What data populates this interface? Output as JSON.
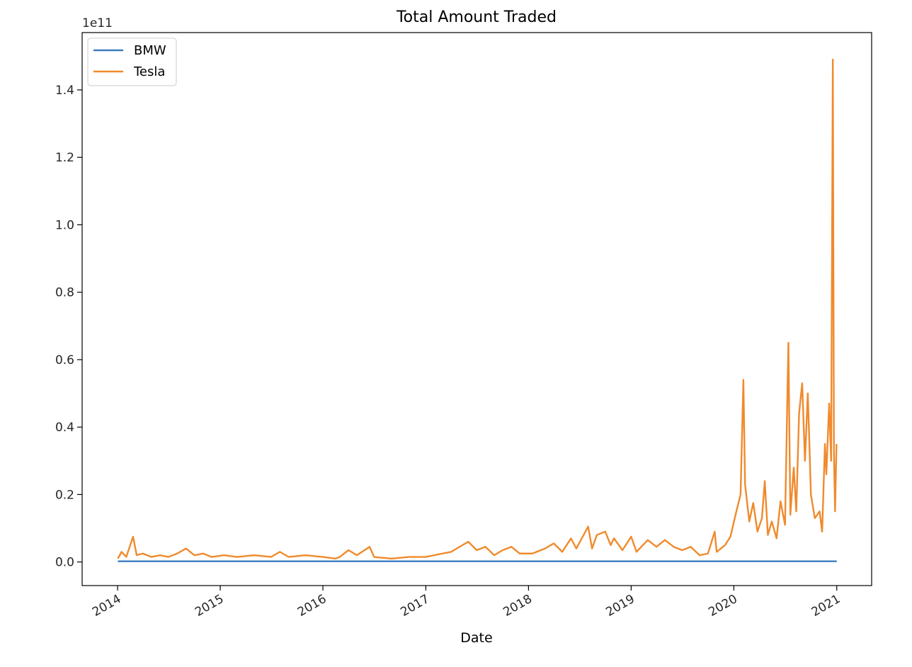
{
  "chart_data": {
    "type": "line",
    "title": "Total Amount Traded",
    "xlabel": "Date",
    "ylabel": "",
    "y_offset_label": "1e11",
    "y_scale_factor": 100000000000,
    "xlim": [
      "2013-08-28",
      "2021-05-05"
    ],
    "ylim": [
      -0.07,
      1.57
    ],
    "x_ticks": [
      "2014",
      "2015",
      "2016",
      "2017",
      "2018",
      "2019",
      "2020",
      "2021"
    ],
    "y_ticks": [
      "0.0",
      "0.2",
      "0.4",
      "0.6",
      "0.8",
      "1.0",
      "1.2",
      "1.4"
    ],
    "grid": false,
    "legend_position": "top-left",
    "series": [
      {
        "name": "BMW",
        "color": "#3b7bbf",
        "points": [
          [
            "2014-01-02",
            0.002
          ],
          [
            "2021-01-01",
            0.002
          ]
        ]
      },
      {
        "name": "Tesla",
        "color": "#f08a2c",
        "points": [
          [
            "2014-01-02",
            0.01
          ],
          [
            "2014-01-15",
            0.03
          ],
          [
            "2014-02-01",
            0.015
          ],
          [
            "2014-02-25",
            0.075
          ],
          [
            "2014-03-10",
            0.02
          ],
          [
            "2014-04-01",
            0.025
          ],
          [
            "2014-05-01",
            0.015
          ],
          [
            "2014-06-01",
            0.02
          ],
          [
            "2014-07-01",
            0.015
          ],
          [
            "2014-08-01",
            0.025
          ],
          [
            "2014-09-01",
            0.04
          ],
          [
            "2014-10-01",
            0.02
          ],
          [
            "2014-11-01",
            0.025
          ],
          [
            "2014-12-01",
            0.015
          ],
          [
            "2015-01-15",
            0.02
          ],
          [
            "2015-03-01",
            0.015
          ],
          [
            "2015-05-01",
            0.02
          ],
          [
            "2015-07-01",
            0.015
          ],
          [
            "2015-08-01",
            0.03
          ],
          [
            "2015-09-01",
            0.015
          ],
          [
            "2015-11-01",
            0.02
          ],
          [
            "2016-01-01",
            0.015
          ],
          [
            "2016-02-15",
            0.01
          ],
          [
            "2016-03-01",
            0.015
          ],
          [
            "2016-04-01",
            0.035
          ],
          [
            "2016-05-01",
            0.02
          ],
          [
            "2016-06-15",
            0.045
          ],
          [
            "2016-07-01",
            0.015
          ],
          [
            "2016-09-01",
            0.01
          ],
          [
            "2016-11-01",
            0.015
          ],
          [
            "2017-01-01",
            0.015
          ],
          [
            "2017-03-01",
            0.025
          ],
          [
            "2017-04-01",
            0.03
          ],
          [
            "2017-05-01",
            0.045
          ],
          [
            "2017-06-01",
            0.06
          ],
          [
            "2017-07-01",
            0.035
          ],
          [
            "2017-08-01",
            0.045
          ],
          [
            "2017-09-01",
            0.02
          ],
          [
            "2017-10-01",
            0.035
          ],
          [
            "2017-11-01",
            0.045
          ],
          [
            "2017-12-01",
            0.025
          ],
          [
            "2018-01-15",
            0.025
          ],
          [
            "2018-03-01",
            0.04
          ],
          [
            "2018-04-01",
            0.055
          ],
          [
            "2018-05-01",
            0.03
          ],
          [
            "2018-06-01",
            0.07
          ],
          [
            "2018-06-20",
            0.04
          ],
          [
            "2018-08-01",
            0.105
          ],
          [
            "2018-08-15",
            0.04
          ],
          [
            "2018-09-01",
            0.08
          ],
          [
            "2018-10-01",
            0.09
          ],
          [
            "2018-10-20",
            0.05
          ],
          [
            "2018-11-01",
            0.07
          ],
          [
            "2018-12-01",
            0.035
          ],
          [
            "2019-01-01",
            0.075
          ],
          [
            "2019-01-20",
            0.03
          ],
          [
            "2019-03-01",
            0.065
          ],
          [
            "2019-04-01",
            0.045
          ],
          [
            "2019-05-01",
            0.065
          ],
          [
            "2019-06-01",
            0.045
          ],
          [
            "2019-07-01",
            0.035
          ],
          [
            "2019-08-01",
            0.045
          ],
          [
            "2019-09-01",
            0.02
          ],
          [
            "2019-10-01",
            0.025
          ],
          [
            "2019-10-25",
            0.09
          ],
          [
            "2019-11-01",
            0.03
          ],
          [
            "2019-12-01",
            0.05
          ],
          [
            "2019-12-20",
            0.075
          ],
          [
            "2020-01-10",
            0.15
          ],
          [
            "2020-01-25",
            0.2
          ],
          [
            "2020-02-04",
            0.54
          ],
          [
            "2020-02-10",
            0.23
          ],
          [
            "2020-02-25",
            0.12
          ],
          [
            "2020-03-10",
            0.175
          ],
          [
            "2020-03-25",
            0.09
          ],
          [
            "2020-04-10",
            0.13
          ],
          [
            "2020-04-20",
            0.24
          ],
          [
            "2020-05-01",
            0.08
          ],
          [
            "2020-05-15",
            0.12
          ],
          [
            "2020-06-01",
            0.07
          ],
          [
            "2020-06-15",
            0.18
          ],
          [
            "2020-07-01",
            0.11
          ],
          [
            "2020-07-13",
            0.65
          ],
          [
            "2020-07-20",
            0.14
          ],
          [
            "2020-08-01",
            0.28
          ],
          [
            "2020-08-10",
            0.15
          ],
          [
            "2020-08-20",
            0.44
          ],
          [
            "2020-08-31",
            0.53
          ],
          [
            "2020-09-10",
            0.3
          ],
          [
            "2020-09-20",
            0.5
          ],
          [
            "2020-09-25",
            0.37
          ],
          [
            "2020-10-01",
            0.2
          ],
          [
            "2020-10-15",
            0.13
          ],
          [
            "2020-11-01",
            0.15
          ],
          [
            "2020-11-10",
            0.09
          ],
          [
            "2020-11-20",
            0.35
          ],
          [
            "2020-11-25",
            0.26
          ],
          [
            "2020-12-05",
            0.47
          ],
          [
            "2020-12-12",
            0.3
          ],
          [
            "2020-12-18",
            1.49
          ],
          [
            "2020-12-22",
            0.32
          ],
          [
            "2020-12-26",
            0.15
          ],
          [
            "2020-12-31",
            0.35
          ]
        ]
      }
    ]
  }
}
